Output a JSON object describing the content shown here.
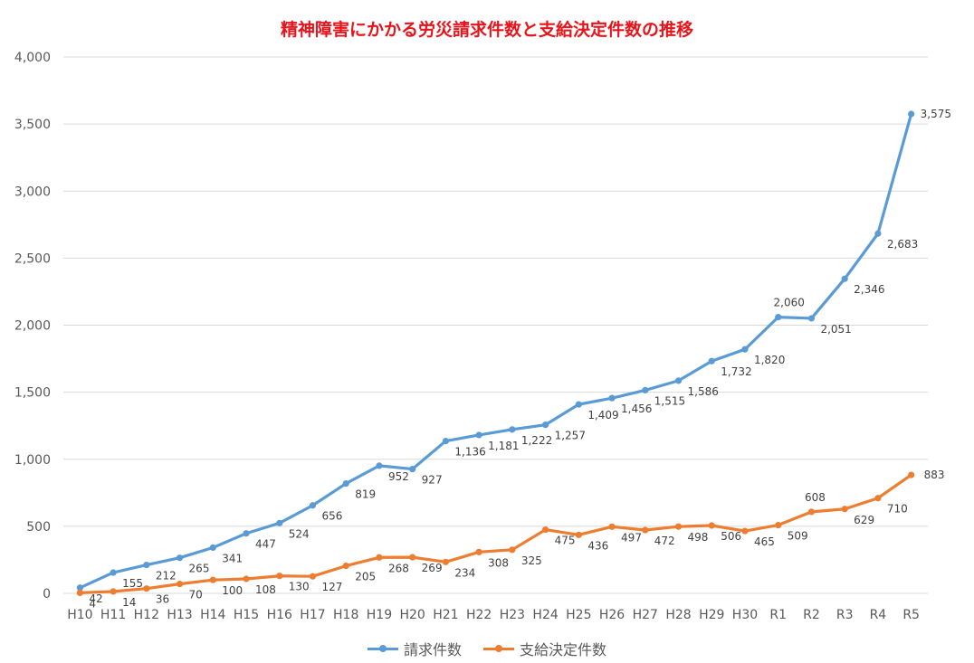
{
  "chart_data": {
    "type": "line",
    "title": "精神障害にかかる労災請求件数と支給決定件数の推移",
    "categories": [
      "H10",
      "H11",
      "H12",
      "H13",
      "H14",
      "H15",
      "H16",
      "H17",
      "H18",
      "H19",
      "H20",
      "H21",
      "H22",
      "H23",
      "H24",
      "H25",
      "H26",
      "H27",
      "H28",
      "H29",
      "H30",
      "R1",
      "R2",
      "R3",
      "R4",
      "R5"
    ],
    "series": [
      {
        "name": "請求件数",
        "color": "#5b9bd5",
        "values": [
          42,
          155,
          212,
          265,
          341,
          447,
          524,
          656,
          819,
          952,
          927,
          1136,
          1181,
          1222,
          1257,
          1409,
          1456,
          1515,
          1586,
          1732,
          1820,
          2060,
          2051,
          2346,
          2683,
          3575
        ],
        "labels": [
          "42",
          "155",
          "212",
          "265",
          "341",
          "447",
          "524",
          "656",
          "819",
          "952",
          "927",
          "1,136",
          "1,181",
          "1,222",
          "1,257",
          "1,409",
          "1,456",
          "1,515",
          "1,586",
          "1,732",
          "1,820",
          "2,060",
          "2,051",
          "2,346",
          "2,683",
          "3,575"
        ]
      },
      {
        "name": "支給決定件数",
        "color": "#ed7d31",
        "values": [
          4,
          14,
          36,
          70,
          100,
          108,
          130,
          127,
          205,
          268,
          269,
          234,
          308,
          325,
          475,
          436,
          497,
          472,
          498,
          506,
          465,
          509,
          608,
          629,
          710,
          883
        ],
        "labels": [
          "4",
          "14",
          "36",
          "70",
          "100",
          "108",
          "130",
          "127",
          "205",
          "268",
          "269",
          "234",
          "308",
          "325",
          "475",
          "436",
          "497",
          "472",
          "498",
          "506",
          "465",
          "509",
          "608",
          "629",
          "710",
          "883"
        ]
      }
    ],
    "ylim": [
      0,
      4000
    ],
    "yticks": [
      0,
      500,
      1000,
      1500,
      2000,
      2500,
      3000,
      3500,
      4000
    ],
    "ytick_labels": [
      "0",
      "500",
      "1,000",
      "1,500",
      "2,000",
      "2,500",
      "3,000",
      "3,500",
      "4,000"
    ],
    "grid": true,
    "legend_position": "bottom"
  }
}
